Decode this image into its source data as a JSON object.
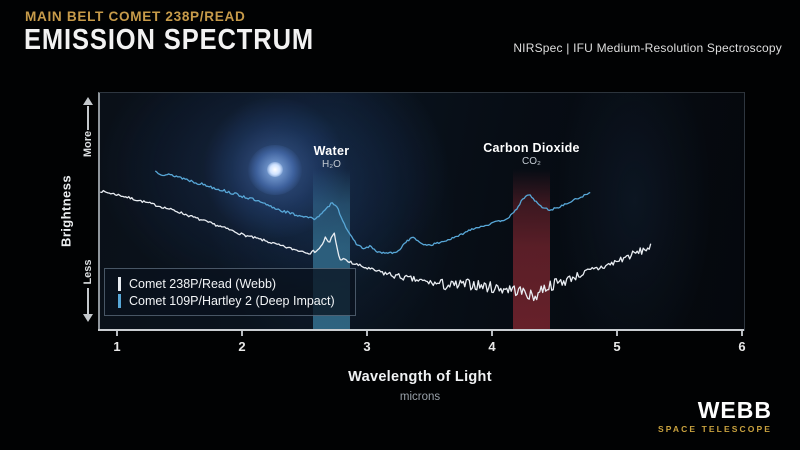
{
  "header": {
    "kicker": "MAIN BELT COMET 238P/READ",
    "title": "EMISSION SPECTRUM",
    "instrument": "NIRSpec | IFU Medium-Resolution Spectroscopy"
  },
  "branding": {
    "name": "WEBB",
    "tagline": "SPACE TELESCOPE"
  },
  "chart_data": {
    "type": "line",
    "title": "Emission Spectrum",
    "xlabel": "Wavelength of Light",
    "xunit": "microns",
    "ylabel": "Brightness",
    "y_axis_annotations": [
      "More",
      "Less"
    ],
    "xlim": [
      0.85,
      6
    ],
    "x_ticks": [
      1,
      2,
      3,
      4,
      5,
      6
    ],
    "grid": false,
    "legend_position": "bottom-left",
    "bands": [
      {
        "label": "Water",
        "formula": "H₂O",
        "range_microns": [
          2.55,
          2.85
        ],
        "color": "#3f89ad"
      },
      {
        "label": "Carbon Dioxide",
        "formula": "CO₂",
        "range_microns": [
          4.15,
          4.45
        ],
        "color": "#952b35"
      }
    ],
    "series": [
      {
        "name": "Comet 238P/Read (Webb)",
        "color": "#e9edf2",
        "seed": 7,
        "points": [
          [
            0.85,
            0.588
          ],
          [
            1.0,
            0.571
          ],
          [
            1.26,
            0.534
          ],
          [
            1.45,
            0.505
          ],
          [
            1.66,
            0.466
          ],
          [
            1.85,
            0.432
          ],
          [
            2.0,
            0.403
          ],
          [
            2.15,
            0.382
          ],
          [
            2.3,
            0.357
          ],
          [
            2.42,
            0.34
          ],
          [
            2.54,
            0.328
          ],
          [
            2.61,
            0.349
          ],
          [
            2.65,
            0.391
          ],
          [
            2.68,
            0.366
          ],
          [
            2.72,
            0.416
          ],
          [
            2.76,
            0.307
          ],
          [
            2.86,
            0.286
          ],
          [
            3.0,
            0.261
          ],
          [
            3.18,
            0.235
          ],
          [
            3.34,
            0.218
          ],
          [
            3.5,
            0.202
          ],
          [
            3.66,
            0.189
          ],
          [
            3.82,
            0.197
          ],
          [
            4.0,
            0.181
          ],
          [
            4.14,
            0.176
          ],
          [
            4.26,
            0.16
          ],
          [
            4.32,
            0.139
          ],
          [
            4.38,
            0.176
          ],
          [
            4.46,
            0.193
          ],
          [
            4.58,
            0.214
          ],
          [
            4.7,
            0.239
          ],
          [
            4.82,
            0.261
          ],
          [
            4.94,
            0.282
          ],
          [
            5.06,
            0.311
          ],
          [
            5.18,
            0.336
          ],
          [
            5.26,
            0.357
          ]
        ],
        "noise": [
          {
            "from": 0.85,
            "to": 2.5,
            "amp": 0.005
          },
          {
            "from": 2.5,
            "to": 3.1,
            "amp": 0.007
          },
          {
            "from": 3.1,
            "to": 3.55,
            "amp": 0.013
          },
          {
            "from": 3.55,
            "to": 4.6,
            "amp": 0.024
          },
          {
            "from": 4.6,
            "to": 5.27,
            "amp": 0.016
          }
        ]
      },
      {
        "name": "Comet 109P/Hartley 2 (Deep Impact)",
        "color": "#58a7d7",
        "seed": 13,
        "points": [
          [
            1.29,
            0.672
          ],
          [
            1.34,
            0.66
          ],
          [
            1.46,
            0.651
          ],
          [
            1.58,
            0.63
          ],
          [
            1.74,
            0.605
          ],
          [
            1.9,
            0.58
          ],
          [
            2.06,
            0.555
          ],
          [
            2.22,
            0.521
          ],
          [
            2.38,
            0.492
          ],
          [
            2.5,
            0.479
          ],
          [
            2.56,
            0.471
          ],
          [
            2.61,
            0.487
          ],
          [
            2.66,
            0.513
          ],
          [
            2.7,
            0.538
          ],
          [
            2.74,
            0.529
          ],
          [
            2.77,
            0.487
          ],
          [
            2.8,
            0.454
          ],
          [
            2.84,
            0.408
          ],
          [
            2.9,
            0.366
          ],
          [
            2.96,
            0.345
          ],
          [
            3.01,
            0.357
          ],
          [
            3.05,
            0.336
          ],
          [
            3.1,
            0.328
          ],
          [
            3.22,
            0.328
          ],
          [
            3.3,
            0.378
          ],
          [
            3.36,
            0.395
          ],
          [
            3.41,
            0.366
          ],
          [
            3.49,
            0.361
          ],
          [
            3.58,
            0.374
          ],
          [
            3.7,
            0.395
          ],
          [
            3.82,
            0.429
          ],
          [
            3.94,
            0.445
          ],
          [
            4.02,
            0.458
          ],
          [
            4.1,
            0.471
          ],
          [
            4.16,
            0.496
          ],
          [
            4.22,
            0.546
          ],
          [
            4.28,
            0.576
          ],
          [
            4.33,
            0.546
          ],
          [
            4.38,
            0.521
          ],
          [
            4.45,
            0.508
          ],
          [
            4.5,
            0.517
          ],
          [
            4.58,
            0.534
          ],
          [
            4.66,
            0.555
          ],
          [
            4.73,
            0.571
          ],
          [
            4.77,
            0.58
          ],
          [
            4.78,
            0.563
          ]
        ],
        "noise": [
          {
            "from": 1.29,
            "to": 2.45,
            "amp": 0.006
          },
          {
            "from": 2.45,
            "to": 4.79,
            "amp": 0.004
          }
        ]
      }
    ]
  }
}
